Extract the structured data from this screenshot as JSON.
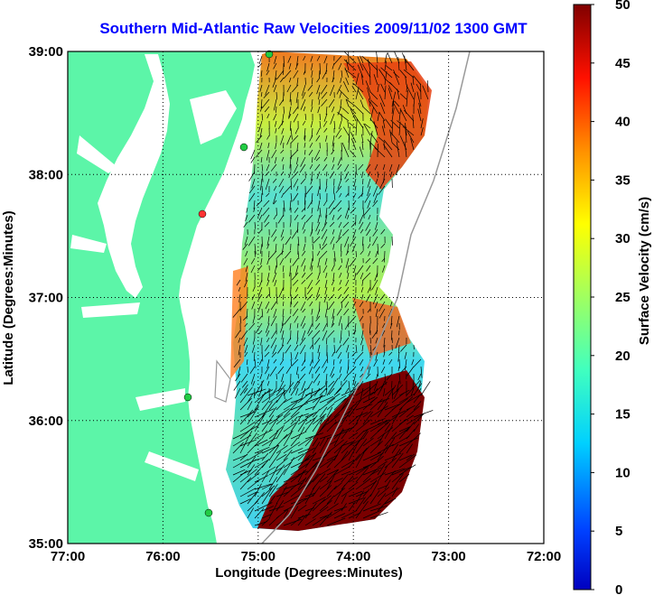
{
  "title": "Southern Mid-Atlantic Raw Velocities 2009/11/02 1300 GMT",
  "x_axis": {
    "label": "Longitude (Degrees:Minutes)",
    "ticks": [
      "77:00",
      "76:00",
      "75:00",
      "74:00",
      "73:00",
      "72:00"
    ]
  },
  "y_axis": {
    "label": "Latitude (Degrees:Minutes)",
    "ticks": [
      "39:00",
      "38:00",
      "37:00",
      "36:00",
      "35:00"
    ]
  },
  "colorbar": {
    "label": "Surface Velocity (cm/s)",
    "ticks": [
      "0",
      "5",
      "10",
      "15",
      "20",
      "25",
      "30",
      "35",
      "40",
      "45",
      "50"
    ],
    "min": 0,
    "max": 50,
    "colormap": "jet"
  },
  "colors": {
    "land": "#5cf5a8",
    "title": "#0000ff",
    "station": "#22cc44",
    "station_alt": "#ff3333"
  }
}
